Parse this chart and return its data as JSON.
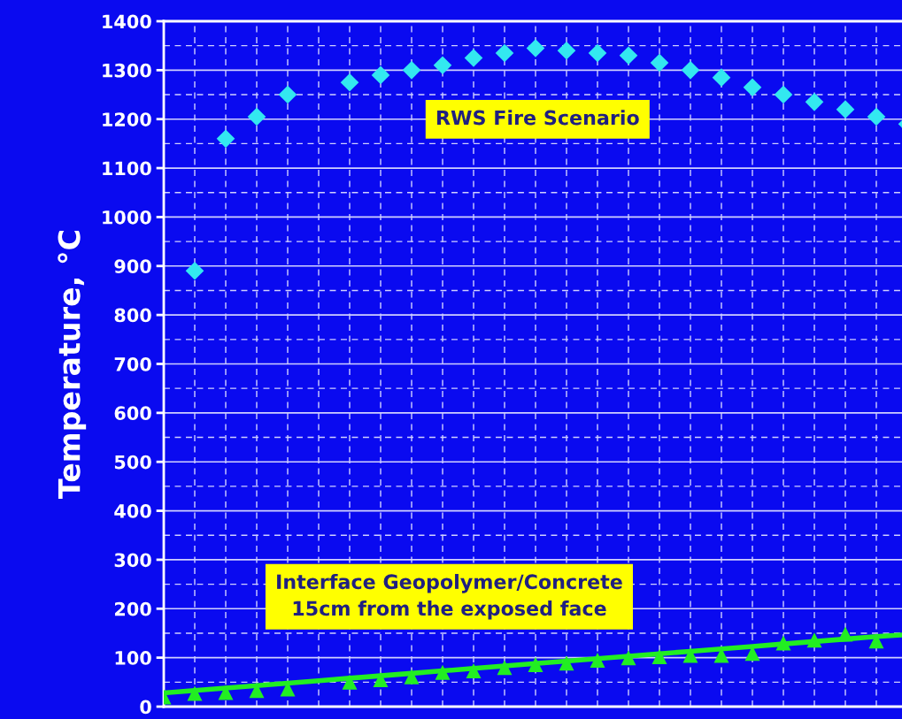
{
  "chart_data": {
    "type": "scatter",
    "ylabel": "Temperature, °C",
    "categories": [
      null,
      null,
      null,
      null,
      null,
      null,
      null,
      null,
      null,
      null,
      null,
      null,
      null,
      null,
      null,
      null,
      null,
      null,
      null,
      null,
      null,
      null,
      null,
      null,
      null
    ],
    "ylim": [
      0,
      1400
    ],
    "yticks": [
      0,
      100,
      200,
      300,
      400,
      500,
      600,
      700,
      800,
      900,
      1000,
      1100,
      1200,
      1300,
      1400
    ],
    "grid": true,
    "tick_labels": "y",
    "series": [
      {
        "marker": "diamond",
        "color": "#33e8f0",
        "values": [
          null,
          890,
          1160,
          1205,
          1250,
          null,
          1275,
          1290,
          1300,
          1310,
          1325,
          1335,
          1345,
          1340,
          1335,
          1330,
          1315,
          1300,
          1285,
          1265,
          1250,
          1235,
          1220,
          1205,
          1190
        ]
      },
      {
        "marker": "triangle",
        "color": "#22ee22",
        "values": [
          20,
          27,
          29,
          33,
          36,
          null,
          50,
          55,
          61,
          70,
          73,
          80,
          86,
          89,
          95,
          100,
          102,
          105,
          105,
          109,
          130,
          136,
          148,
          134,
          null
        ]
      },
      {
        "type": "line",
        "marker": "none",
        "color": "#22ee22",
        "values": [
          28,
          33,
          38,
          43,
          48,
          53,
          58,
          63,
          68,
          73,
          78,
          83,
          88,
          93,
          98,
          103,
          108,
          113,
          118,
          123,
          128,
          133,
          138,
          143,
          147
        ]
      }
    ],
    "annotations": [
      "RWS Fire Scenario",
      "Interface Geopolymer/Concrete\n15cm from the exposed face"
    ]
  }
}
